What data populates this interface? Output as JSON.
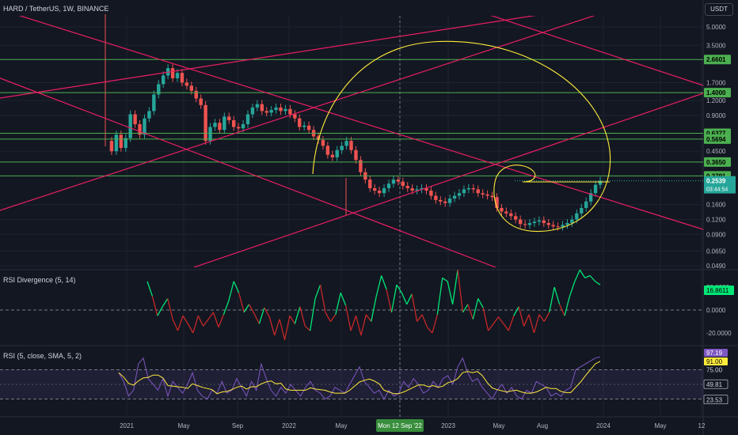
{
  "header": {
    "symbol": "HARD / TetherUS, 1W, BINANCE",
    "currency": "USDT"
  },
  "colors": {
    "bg": "#131722",
    "grid": "#1f2330",
    "up": "#26a69a",
    "down": "#ef5350",
    "trend": "#e91e63",
    "hline": "#4caf50",
    "fib": "#ffeb3b",
    "rsi": "#7e57c2",
    "rsiMa": "#ffeb3b",
    "divUp": "#00e676",
    "divDown": "#c62828"
  },
  "chart_data": [
    {
      "type": "candlestick",
      "title": "HARD / TetherUS, 1W, BINANCE",
      "scale": "log",
      "y_ticks": [
        "5.0000",
        "3.5000",
        "1.7000",
        "1.2000",
        "0.9000",
        "0.4500",
        "0.1600",
        "0.1200",
        "0.0900",
        "0.0650",
        "0.0490"
      ],
      "x_ticks": [
        "2021",
        "May",
        "Sep",
        "2022",
        "May",
        "Mon 12 Sep '22",
        "2023",
        "May",
        "Aug",
        "2024",
        "May",
        "12"
      ],
      "horizontal_levels": [
        "2.6601",
        "1.4000",
        "0.6377",
        "0.5694",
        "0.3650",
        "0.2791"
      ],
      "last_price": "0.2539",
      "countdown": "03:44:54",
      "path": [
        0.55,
        0.45,
        0.62,
        0.48,
        0.58,
        0.92,
        0.76,
        0.62,
        0.85,
        0.98,
        1.35,
        1.65,
        1.95,
        2.25,
        1.85,
        2.05,
        1.7,
        1.6,
        1.45,
        1.25,
        1.1,
        0.55,
        0.72,
        0.78,
        0.68,
        0.88,
        0.82,
        0.72,
        0.7,
        0.76,
        0.92,
        1.05,
        1.12,
        0.98,
        0.95,
        1.0,
        1.05,
        0.98,
        1.02,
        0.92,
        0.85,
        0.72,
        0.74,
        0.68,
        0.6,
        0.56,
        0.5,
        0.42,
        0.4,
        0.46,
        0.5,
        0.55,
        0.46,
        0.38,
        0.3,
        0.26,
        0.22,
        0.21,
        0.2,
        0.22,
        0.24,
        0.26,
        0.25,
        0.23,
        0.22,
        0.21,
        0.215,
        0.22,
        0.21,
        0.19,
        0.175,
        0.17,
        0.165,
        0.18,
        0.19,
        0.2,
        0.215,
        0.22,
        0.215,
        0.2,
        0.195,
        0.19,
        0.185,
        0.15,
        0.14,
        0.135,
        0.128,
        0.12,
        0.11,
        0.108,
        0.112,
        0.115,
        0.118,
        0.112,
        0.108,
        0.105,
        0.104,
        0.108,
        0.112,
        0.12,
        0.135,
        0.15,
        0.17,
        0.2,
        0.235,
        0.2539
      ]
    },
    {
      "type": "line",
      "title": "RSI Divergence (5, 14)",
      "y_ticks": [
        "20.0000",
        "0.0000",
        "-20.0000"
      ],
      "last_value": "16.8611"
    },
    {
      "type": "line",
      "title": "RSI (5, close, SMA, 5, 2)",
      "y_ticks": [
        "75.00",
        "49.81",
        "23.53"
      ],
      "labels": [
        "97.19",
        "91.00",
        "49.81",
        "23.53"
      ]
    }
  ]
}
